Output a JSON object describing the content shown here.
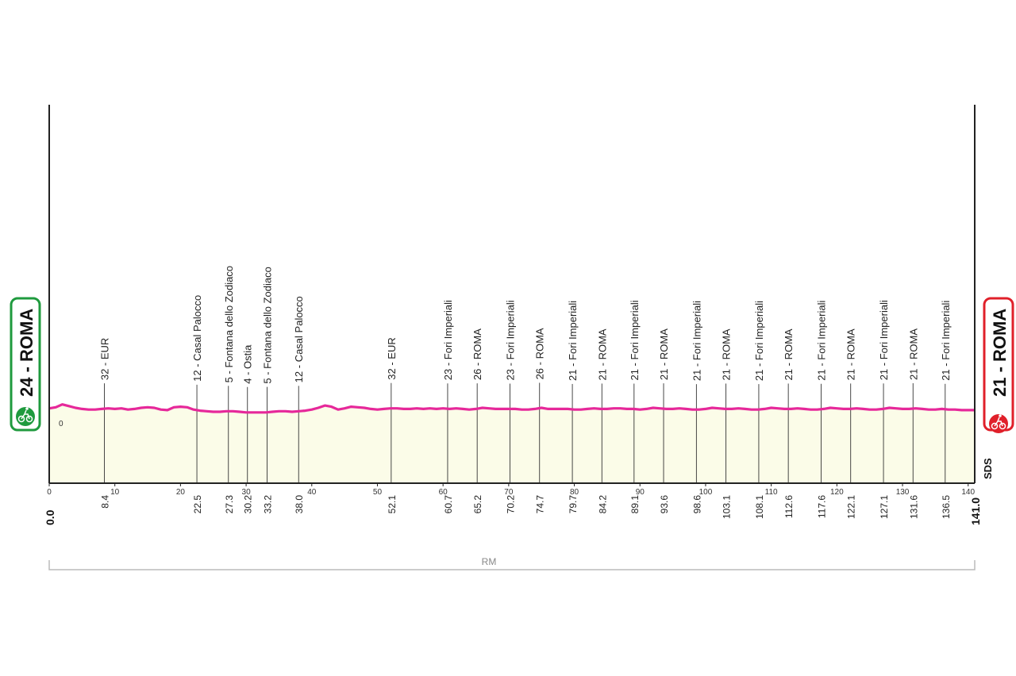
{
  "chart_data": {
    "type": "area",
    "start": {
      "label": "24 - ROMA",
      "altitude_m": 24,
      "town": "ROMA",
      "km": "0.0",
      "color": "#1f9a3e"
    },
    "finish": {
      "label": "21 - ROMA",
      "altitude_m": 21,
      "town": "ROMA",
      "km": "141.0",
      "color": "#e0202a"
    },
    "line_color": "#e6289a",
    "fill_color": "#fbfce8",
    "xlim": [
      0,
      141
    ],
    "ylim": [
      -10,
      40
    ],
    "x_ticks": [
      {
        "v": 0,
        "label": "0"
      },
      {
        "v": 10,
        "label": "10"
      },
      {
        "v": 20,
        "label": "20"
      },
      {
        "v": 30,
        "label": "30"
      },
      {
        "v": 40,
        "label": "40"
      },
      {
        "v": 50,
        "label": "50"
      },
      {
        "v": 60,
        "label": "60"
      },
      {
        "v": 70,
        "label": "70"
      },
      {
        "v": 80,
        "label": "80"
      },
      {
        "v": 90,
        "label": "90"
      },
      {
        "v": 100,
        "label": "100"
      },
      {
        "v": 110,
        "label": "110"
      },
      {
        "v": 120,
        "label": "120"
      },
      {
        "v": 130,
        "label": "130"
      },
      {
        "v": 140,
        "label": "140"
      }
    ],
    "y_zero_label": "0",
    "profile": [
      [
        0,
        24
      ],
      [
        1,
        26
      ],
      [
        2,
        31
      ],
      [
        3,
        28
      ],
      [
        4,
        25
      ],
      [
        5,
        23
      ],
      [
        6,
        22
      ],
      [
        7,
        22
      ],
      [
        8,
        23
      ],
      [
        9,
        24
      ],
      [
        10,
        23
      ],
      [
        11,
        24
      ],
      [
        12,
        22
      ],
      [
        13,
        23
      ],
      [
        14,
        25
      ],
      [
        15,
        26
      ],
      [
        16,
        25
      ],
      [
        17,
        22
      ],
      [
        18,
        21
      ],
      [
        19,
        26
      ],
      [
        20,
        27
      ],
      [
        21,
        26
      ],
      [
        22,
        22
      ],
      [
        23,
        20
      ],
      [
        24,
        19
      ],
      [
        25,
        18
      ],
      [
        26,
        18
      ],
      [
        27,
        19
      ],
      [
        28,
        19
      ],
      [
        29,
        18
      ],
      [
        30,
        17
      ],
      [
        31,
        17
      ],
      [
        32,
        17
      ],
      [
        33,
        17
      ],
      [
        34,
        18
      ],
      [
        35,
        19
      ],
      [
        36,
        19
      ],
      [
        37,
        18
      ],
      [
        38,
        19
      ],
      [
        39,
        20
      ],
      [
        40,
        22
      ],
      [
        41,
        25
      ],
      [
        42,
        29
      ],
      [
        43,
        27
      ],
      [
        44,
        22
      ],
      [
        45,
        24
      ],
      [
        46,
        27
      ],
      [
        47,
        26
      ],
      [
        48,
        25
      ],
      [
        49,
        23
      ],
      [
        50,
        22
      ],
      [
        51,
        23
      ],
      [
        52,
        24
      ],
      [
        53,
        24
      ],
      [
        54,
        23
      ],
      [
        55,
        23
      ],
      [
        56,
        24
      ],
      [
        57,
        23
      ],
      [
        58,
        24
      ],
      [
        59,
        23
      ],
      [
        60,
        24
      ],
      [
        61,
        23
      ],
      [
        62,
        24
      ],
      [
        63,
        23
      ],
      [
        64,
        22
      ],
      [
        65,
        23
      ],
      [
        66,
        25
      ],
      [
        67,
        24
      ],
      [
        68,
        23
      ],
      [
        69,
        23
      ],
      [
        70,
        23
      ],
      [
        71,
        23
      ],
      [
        72,
        22
      ],
      [
        73,
        22
      ],
      [
        74,
        23
      ],
      [
        75,
        25
      ],
      [
        76,
        23
      ],
      [
        77,
        23
      ],
      [
        78,
        23
      ],
      [
        79,
        23
      ],
      [
        80,
        22
      ],
      [
        81,
        22
      ],
      [
        82,
        23
      ],
      [
        83,
        24
      ],
      [
        84,
        23
      ],
      [
        85,
        23
      ],
      [
        86,
        24
      ],
      [
        87,
        24
      ],
      [
        88,
        23
      ],
      [
        89,
        23
      ],
      [
        90,
        22
      ],
      [
        91,
        23
      ],
      [
        92,
        25
      ],
      [
        93,
        24
      ],
      [
        94,
        23
      ],
      [
        95,
        23
      ],
      [
        96,
        24
      ],
      [
        97,
        23
      ],
      [
        98,
        22
      ],
      [
        99,
        22
      ],
      [
        100,
        23
      ],
      [
        101,
        25
      ],
      [
        102,
        24
      ],
      [
        103,
        23
      ],
      [
        104,
        23
      ],
      [
        105,
        24
      ],
      [
        106,
        23
      ],
      [
        107,
        22
      ],
      [
        108,
        22
      ],
      [
        109,
        23
      ],
      [
        110,
        25
      ],
      [
        111,
        24
      ],
      [
        112,
        23
      ],
      [
        113,
        23
      ],
      [
        114,
        24
      ],
      [
        115,
        23
      ],
      [
        116,
        22
      ],
      [
        117,
        22
      ],
      [
        118,
        23
      ],
      [
        119,
        25
      ],
      [
        120,
        24
      ],
      [
        121,
        23
      ],
      [
        122,
        23
      ],
      [
        123,
        24
      ],
      [
        124,
        23
      ],
      [
        125,
        22
      ],
      [
        126,
        22
      ],
      [
        127,
        23
      ],
      [
        128,
        25
      ],
      [
        129,
        24
      ],
      [
        130,
        23
      ],
      [
        131,
        23
      ],
      [
        132,
        24
      ],
      [
        133,
        23
      ],
      [
        134,
        22
      ],
      [
        135,
        22
      ],
      [
        136,
        23
      ],
      [
        137,
        22
      ],
      [
        138,
        22
      ],
      [
        139,
        21
      ],
      [
        140,
        21
      ],
      [
        141,
        21
      ]
    ],
    "waypoints": [
      {
        "label": "32 - EUR",
        "km": 8.4,
        "km_label": "8.4"
      },
      {
        "label": "12 - Casal Palocco",
        "km": 22.5,
        "km_label": "22.5"
      },
      {
        "label": "5 - Fontana dello Zodiaco",
        "km": 27.3,
        "km_label": "27.3"
      },
      {
        "label": "4 - Ostia",
        "km": 30.2,
        "km_label": "30.2"
      },
      {
        "label": "5 - Fontana dello Zodiaco",
        "km": 33.2,
        "km_label": "33.2"
      },
      {
        "label": "12 - Casal Palocco",
        "km": 38.0,
        "km_label": "38.0"
      },
      {
        "label": "32 - EUR",
        "km": 52.1,
        "km_label": "52.1"
      },
      {
        "label": "23 - Fori Imperiali",
        "km": 60.7,
        "km_label": "60.7"
      },
      {
        "label": "26 - ROMA",
        "km": 65.2,
        "km_label": "65.2"
      },
      {
        "label": "23 - Fori Imperiali",
        "km": 70.2,
        "km_label": "70.2"
      },
      {
        "label": "26 - ROMA",
        "km": 74.7,
        "km_label": "74.7"
      },
      {
        "label": "21 - Fori Imperiali",
        "km": 79.7,
        "km_label": "79.7"
      },
      {
        "label": "21 - ROMA",
        "km": 84.2,
        "km_label": "84.2"
      },
      {
        "label": "21 - Fori Imperiali",
        "km": 89.1,
        "km_label": "89.1"
      },
      {
        "label": "21 - ROMA",
        "km": 93.6,
        "km_label": "93.6"
      },
      {
        "label": "21 - Fori Imperiali",
        "km": 98.6,
        "km_label": "98.6"
      },
      {
        "label": "21 - ROMA",
        "km": 103.1,
        "km_label": "103.1"
      },
      {
        "label": "21 - Fori Imperiali",
        "km": 108.1,
        "km_label": "108.1"
      },
      {
        "label": "21 - ROMA",
        "km": 112.6,
        "km_label": "112.6"
      },
      {
        "label": "21 - Fori Imperiali",
        "km": 117.6,
        "km_label": "117.6"
      },
      {
        "label": "21 - ROMA",
        "km": 122.1,
        "km_label": "122.1"
      },
      {
        "label": "21 - Fori Imperiali",
        "km": 127.1,
        "km_label": "127.1"
      },
      {
        "label": "21 - ROMA",
        "km": 131.6,
        "km_label": "131.6"
      },
      {
        "label": "21 - Fori Imperiali",
        "km": 136.5,
        "km_label": "136.5"
      }
    ],
    "province": "RM",
    "logo_text": "SDS"
  }
}
